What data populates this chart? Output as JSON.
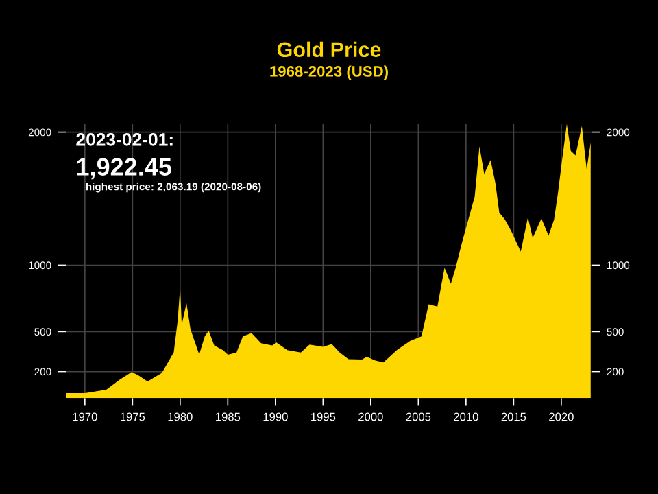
{
  "chart_data": {
    "type": "area",
    "title": "Gold Price",
    "subtitle": "1968-2023 (USD)",
    "annotations": [
      "2023-02-01:",
      "1,922.45",
      "highest price: 2,063.19 (2020-08-06)"
    ],
    "x": [
      "1968-01",
      "1970-01",
      "1972-04",
      "1973-09",
      "1974-12",
      "1975-08",
      "1976-08",
      "1978-02",
      "1979-05",
      "1979-10",
      "1980-01",
      "1980-03",
      "1980-09",
      "1981-02",
      "1982-01",
      "1982-08",
      "1983-01",
      "1983-08",
      "1984-07",
      "1985-01",
      "1985-12",
      "1986-08",
      "1987-07",
      "1988-07",
      "1989-09",
      "1990-02",
      "1991-04",
      "1992-09",
      "1993-08",
      "1995-01",
      "1995-12",
      "1996-10",
      "1997-09",
      "1999-02",
      "1999-08",
      "2000-07",
      "2001-05",
      "2002-10",
      "2004-03",
      "2005-05",
      "2006-02",
      "2007-01",
      "2007-10",
      "2008-06",
      "2008-12",
      "2009-08",
      "2010-04",
      "2010-12",
      "2011-06",
      "2011-12",
      "2012-08",
      "2013-02",
      "2013-07",
      "2014-02",
      "2014-10",
      "2015-10",
      "2016-07",
      "2017-01",
      "2017-12",
      "2018-09",
      "2019-04",
      "2019-09",
      "2020-02",
      "2020-08",
      "2021-01",
      "2021-07",
      "2022-03",
      "2022-09",
      "2023-02"
    ],
    "values": [
      38,
      38,
      64,
      139,
      197,
      173,
      125,
      190,
      345,
      586,
      837,
      551,
      713,
      517,
      328,
      465,
      507,
      396,
      361,
      327,
      344,
      465,
      489,
      413,
      396,
      420,
      361,
      344,
      403,
      386,
      406,
      344,
      293,
      290,
      311,
      283,
      269,
      362,
      431,
      465,
      706,
      689,
      981,
      861,
      981,
      1170,
      1343,
      1515,
      1893,
      1686,
      1790,
      1617,
      1394,
      1343,
      1257,
      1102,
      1360,
      1205,
      1350,
      1222,
      1343,
      1549,
      1790,
      2063,
      1859,
      1825,
      2047,
      1721,
      1922.45
    ],
    "color": "#ffd700",
    "xlim": [
      "1968-01",
      "2023-04"
    ],
    "xticks": [
      "1970",
      "1975",
      "1980",
      "1985",
      "1990",
      "1995",
      "2000",
      "2005",
      "2010",
      "2015",
      "2020"
    ],
    "ylim": [
      0,
      2065
    ],
    "yticks": [
      200,
      500,
      1000,
      2000
    ],
    "y2lim": [
      0,
      2065
    ],
    "y2ticks": [
      200,
      500,
      1000,
      2000
    ],
    "grid": true
  }
}
